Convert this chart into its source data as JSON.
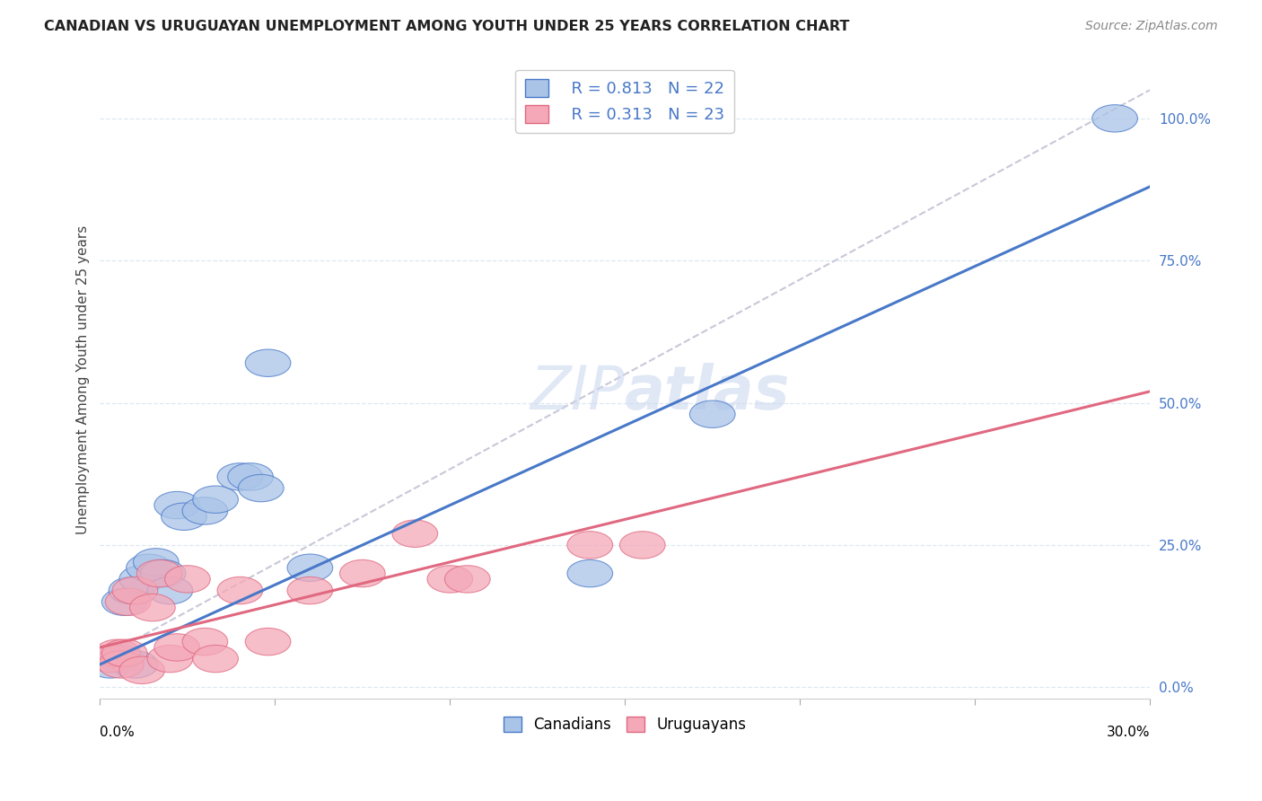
{
  "title": "CANADIAN VS URUGUAYAN UNEMPLOYMENT AMONG YOUTH UNDER 25 YEARS CORRELATION CHART",
  "source": "Source: ZipAtlas.com",
  "ylabel": "Unemployment Among Youth under 25 years",
  "right_yticks": [
    "0.0%",
    "25.0%",
    "50.0%",
    "75.0%",
    "100.0%"
  ],
  "right_ytick_vals": [
    0.0,
    0.25,
    0.5,
    0.75,
    1.0
  ],
  "xlim": [
    0.0,
    0.3
  ],
  "ylim": [
    -0.02,
    1.1
  ],
  "canadian_color": "#aac4e8",
  "uruguayan_color": "#f4a8b8",
  "trend_blue": "#4878c8",
  "trend_pink": "#e06880",
  "ref_line_color": "#c8c8d8",
  "watermark_color": "#ccd8ef",
  "background": "#ffffff",
  "grid_color": "#dde8f0",
  "canadians_x": [
    0.003,
    0.006,
    0.007,
    0.009,
    0.01,
    0.012,
    0.014,
    0.016,
    0.018,
    0.02,
    0.022,
    0.024,
    0.03,
    0.033,
    0.04,
    0.043,
    0.046,
    0.048,
    0.06,
    0.14,
    0.175,
    0.29
  ],
  "canadians_y": [
    0.04,
    0.05,
    0.15,
    0.17,
    0.04,
    0.19,
    0.21,
    0.22,
    0.2,
    0.17,
    0.32,
    0.3,
    0.31,
    0.33,
    0.37,
    0.37,
    0.35,
    0.57,
    0.21,
    0.2,
    0.48,
    1.0
  ],
  "uruguayans_x": [
    0.003,
    0.005,
    0.006,
    0.007,
    0.008,
    0.01,
    0.012,
    0.015,
    0.017,
    0.02,
    0.022,
    0.025,
    0.03,
    0.033,
    0.04,
    0.048,
    0.06,
    0.075,
    0.09,
    0.1,
    0.105,
    0.14,
    0.155
  ],
  "uruguayans_y": [
    0.05,
    0.06,
    0.04,
    0.06,
    0.15,
    0.17,
    0.03,
    0.14,
    0.2,
    0.05,
    0.07,
    0.19,
    0.08,
    0.05,
    0.17,
    0.08,
    0.17,
    0.2,
    0.27,
    0.19,
    0.19,
    0.25,
    0.25
  ],
  "blue_trend_x0": 0.0,
  "blue_trend_y0": 0.04,
  "blue_trend_x1": 0.3,
  "blue_trend_y1": 0.88,
  "pink_trend_x0": 0.0,
  "pink_trend_y0": 0.07,
  "pink_trend_x1": 0.3,
  "pink_trend_y1": 0.52
}
